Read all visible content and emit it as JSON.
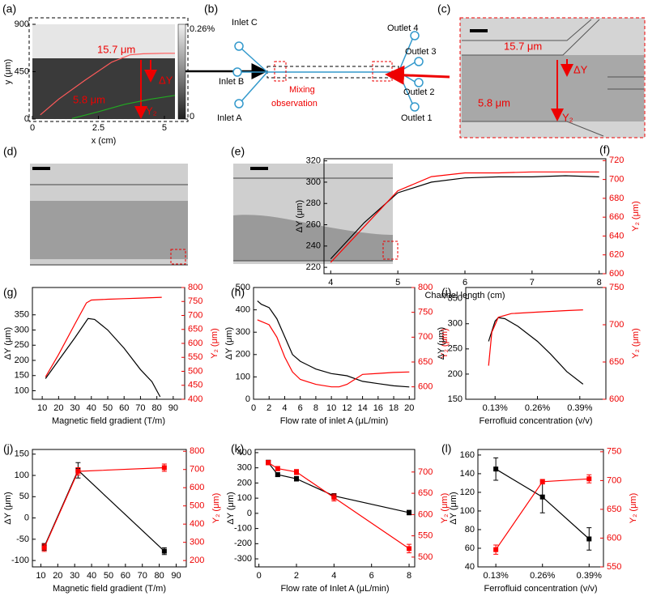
{
  "chart_data": [
    {
      "type": "field",
      "panel_label": "(a)",
      "xlabel": "x (cm)",
      "ylabel": "y (μm)",
      "xlim": [
        0,
        5.4
      ],
      "ylim": [
        0,
        900
      ],
      "xticks": [
        0,
        2.5,
        5
      ],
      "yticks": [
        0,
        450,
        900
      ],
      "colorbar_lim": [
        0,
        0.26
      ],
      "colorbar_ticks": [
        {
          "value": 0.26,
          "label": "0.26%"
        },
        0
      ],
      "annotations": [
        "15.7 μm",
        "ΔY",
        "5.8 μm",
        "Y₂"
      ],
      "series": [
        {
          "color": "#ff5a5a",
          "x": [
            0.3,
            1,
            2,
            3,
            3.7,
            4.2,
            5,
            5.4
          ],
          "values": [
            40,
            190,
            370,
            540,
            610,
            620,
            625,
            625
          ]
        },
        {
          "color": "#22aa22",
          "x": [
            1.5,
            2.5,
            3.5,
            4.5,
            5.4
          ],
          "values": [
            5,
            70,
            140,
            190,
            225
          ]
        }
      ]
    },
    {
      "type": "line",
      "panel_label": "(f)",
      "xlabel": "Channel length (cm)",
      "ylabel": "ΔY (μm)",
      "y2label": "Y₂ (μm)",
      "xlim": [
        3.9,
        8.1
      ],
      "ylim": [
        214,
        322
      ],
      "y2lim": [
        600,
        722
      ],
      "xticks": [
        4,
        5,
        6,
        7,
        8
      ],
      "yticks": [
        220,
        240,
        260,
        280,
        300,
        320
      ],
      "y2ticks": [
        600,
        620,
        640,
        660,
        680,
        700,
        720
      ],
      "series": [
        {
          "color": "#000000",
          "x": [
            4,
            4.5,
            5,
            5.5,
            6,
            6.5,
            7,
            7.5,
            8
          ],
          "values": [
            228,
            262,
            290,
            300,
            304,
            305,
            305,
            306,
            305
          ]
        },
        {
          "color": "#ff0000",
          "axis": "y2",
          "x": [
            4,
            4.5,
            5,
            5.5,
            6,
            6.5,
            7,
            7.5,
            8
          ],
          "values": [
            612,
            650,
            688,
            703,
            707,
            707,
            708,
            708,
            708
          ]
        }
      ]
    },
    {
      "type": "line",
      "panel_label": "(g)",
      "xlabel": "Magnetic field gradient (T/m)",
      "ylabel": "ΔY (μm)",
      "y2label": "Y₂ (μm)",
      "xlim": [
        4,
        97
      ],
      "ylim": [
        72,
        440
      ],
      "y2lim": [
        400,
        800
      ],
      "xticks": [
        10,
        20,
        30,
        40,
        50,
        60,
        70,
        80,
        90
      ],
      "yticks": [
        100,
        150,
        200,
        250,
        300,
        350
      ],
      "y2ticks": [
        400,
        450,
        500,
        550,
        600,
        650,
        700,
        750,
        800
      ],
      "series": [
        {
          "color": "#000000",
          "x": [
            12,
            20,
            30,
            38,
            42,
            50,
            60,
            70,
            77,
            82
          ],
          "values": [
            140,
            200,
            275,
            338,
            335,
            300,
            240,
            170,
            130,
            80
          ]
        },
        {
          "color": "#ff0000",
          "axis": "y2",
          "x": [
            12,
            20,
            30,
            37,
            40,
            50,
            60,
            70,
            83
          ],
          "values": [
            480,
            560,
            670,
            745,
            755,
            758,
            760,
            762,
            765
          ]
        }
      ]
    },
    {
      "type": "line",
      "panel_label": "(h)",
      "xlabel": "Flow rate of inlet A (μL/min)",
      "ylabel": "ΔY (μm)",
      "y2label": "Y₂ (μm)",
      "xlim": [
        0,
        20.7
      ],
      "ylim": [
        0,
        500
      ],
      "y2lim": [
        575,
        800
      ],
      "xticks": [
        0,
        2,
        4,
        6,
        8,
        10,
        12,
        14,
        16,
        18,
        20
      ],
      "yticks": [
        0,
        100,
        200,
        300,
        400,
        500
      ],
      "y2ticks": [
        600,
        650,
        700,
        750,
        800
      ],
      "series": [
        {
          "color": "#000000",
          "x": [
            0.5,
            1,
            2,
            3,
            4,
            5,
            6,
            8,
            10,
            11,
            12,
            14,
            16,
            18,
            20
          ],
          "values": [
            440,
            425,
            410,
            360,
            280,
            200,
            170,
            135,
            115,
            110,
            105,
            80,
            70,
            60,
            55
          ]
        },
        {
          "color": "#ff0000",
          "axis": "y2",
          "x": [
            0.5,
            2,
            3,
            4,
            5,
            6,
            8,
            10,
            11,
            12,
            13,
            14,
            16,
            18,
            20
          ],
          "values": [
            735,
            725,
            700,
            660,
            630,
            615,
            605,
            600,
            600,
            605,
            615,
            625,
            627,
            629,
            630
          ]
        }
      ]
    },
    {
      "type": "line",
      "panel_label": "(i)",
      "xlabel": "Ferrofluid concentration (v/v)",
      "ylabel": "ΔY (μm)",
      "y2label": "Y₂ (μm)",
      "xlim": [
        0.04,
        0.47
      ],
      "ylim": [
        150,
        372
      ],
      "y2lim": [
        600,
        750
      ],
      "xticks": [
        {
          "value": 0.13,
          "label": "0.13%"
        },
        {
          "value": 0.26,
          "label": "0.26%"
        },
        {
          "value": 0.39,
          "label": "0.39%"
        }
      ],
      "yticks": [
        150,
        200,
        250,
        300,
        350
      ],
      "y2ticks": [
        600,
        650,
        700,
        750
      ],
      "series": [
        {
          "color": "#000000",
          "x": [
            0.11,
            0.13,
            0.14,
            0.16,
            0.2,
            0.26,
            0.3,
            0.35,
            0.4
          ],
          "values": [
            265,
            305,
            312,
            310,
            295,
            265,
            240,
            205,
            180
          ]
        },
        {
          "color": "#ff0000",
          "axis": "y2",
          "x": [
            0.11,
            0.12,
            0.14,
            0.18,
            0.26,
            0.35,
            0.4
          ],
          "values": [
            645,
            690,
            710,
            715,
            717,
            719,
            720
          ]
        }
      ]
    },
    {
      "type": "errorline",
      "panel_label": "(j)",
      "xlabel": "Magnetic field gradient (T/m)",
      "ylabel": "ΔY (μm)",
      "y2label": "Y₂ (μm)",
      "xlim": [
        5,
        96
      ],
      "ylim": [
        -115,
        161
      ],
      "y2lim": [
        165,
        810
      ],
      "xticks": [
        10,
        20,
        30,
        40,
        50,
        60,
        70,
        80,
        90
      ],
      "yticks": [
        -100,
        -50,
        0,
        50,
        100,
        150
      ],
      "y2ticks": [
        200,
        300,
        400,
        500,
        600,
        700,
        800
      ],
      "series": [
        {
          "color": "#000000",
          "x": [
            12,
            32,
            83
          ],
          "values": [
            -68,
            112,
            -78
          ],
          "errors": [
            8,
            18,
            8
          ]
        },
        {
          "color": "#ff0000",
          "axis": "y2",
          "x": [
            12,
            32,
            83
          ],
          "values": [
            270,
            690,
            710
          ],
          "errors": [
            20,
            20,
            20
          ]
        }
      ]
    },
    {
      "type": "errorline",
      "panel_label": "(k)",
      "xlabel": "Flow rate of Inlet A (μL/min)",
      "ylabel": "ΔY (μm)",
      "y2label": "Y₂ (μm)",
      "xlim": [
        -0.2,
        8.3
      ],
      "ylim": [
        -353,
        421
      ],
      "y2lim": [
        477,
        753
      ],
      "xticks": [
        0,
        2,
        4,
        6,
        8
      ],
      "yticks": [
        -300,
        -200,
        -100,
        0,
        100,
        200,
        300,
        400
      ],
      "y2ticks": [
        500,
        550,
        600,
        650,
        700
      ],
      "series": [
        {
          "color": "#000000",
          "x": [
            0.5,
            1,
            2,
            4,
            8
          ],
          "values": [
            335,
            255,
            228,
            115,
            5
          ],
          "errors": [
            15,
            12,
            15,
            15,
            15
          ]
        },
        {
          "color": "#ff0000",
          "axis": "y2",
          "x": [
            0.5,
            1,
            2,
            4,
            8
          ],
          "values": [
            722,
            708,
            700,
            640,
            520
          ],
          "errors": [
            5,
            5,
            6,
            8,
            10
          ]
        }
      ]
    },
    {
      "type": "errorline",
      "panel_label": "(l)",
      "xlabel": "Ferrofluid concentration (v/v)",
      "ylabel": "ΔY (μm)",
      "y2label": "Y₂ (μm)",
      "xlim": [
        0.08,
        0.43
      ],
      "ylim": [
        40,
        166
      ],
      "y2lim": [
        550,
        754
      ],
      "xticks": [
        {
          "value": 0.13,
          "label": "0.13%"
        },
        {
          "value": 0.26,
          "label": "0.26%"
        },
        {
          "value": 0.39,
          "label": "0.39%"
        }
      ],
      "yticks": [
        40,
        60,
        80,
        100,
        120,
        140,
        160
      ],
      "y2ticks": [
        550,
        600,
        650,
        700,
        750
      ],
      "series": [
        {
          "color": "#000000",
          "x": [
            0.13,
            0.26,
            0.39
          ],
          "values": [
            145,
            115,
            70
          ],
          "errors": [
            12,
            17,
            12
          ]
        },
        {
          "color": "#ff0000",
          "axis": "y2",
          "x": [
            0.13,
            0.26,
            0.39
          ],
          "values": [
            580,
            698,
            703
          ],
          "errors": [
            8,
            4,
            7
          ]
        }
      ]
    }
  ],
  "figure": {
    "b": {
      "panel_label": "(b)",
      "inlets": [
        "Inlet C",
        "Inlet B",
        "Inlet A"
      ],
      "outlets": [
        "Outlet 4",
        "Outlet 3",
        "Outlet 2",
        "Outlet 1"
      ],
      "box_label": [
        "Mixing",
        "observation"
      ]
    },
    "c": {
      "panel_label": "(c)",
      "labels": [
        "15.7 μm",
        "ΔY",
        "5.8 μm",
        "Y₂"
      ]
    },
    "d": {
      "panel_label": "(d)"
    },
    "e": {
      "panel_label": "(e)"
    }
  }
}
